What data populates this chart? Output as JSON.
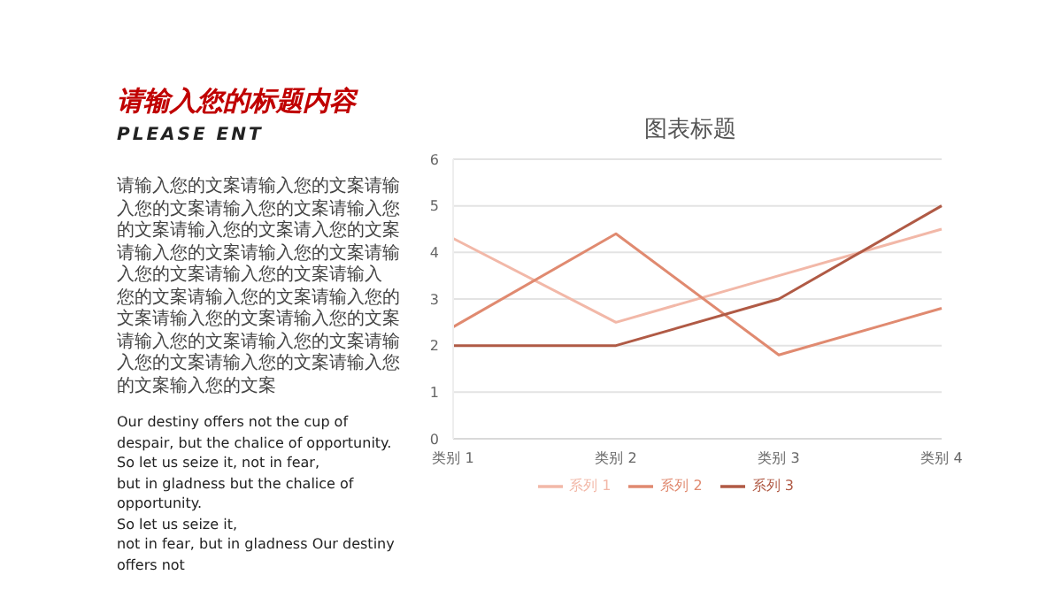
{
  "chart_data": {
    "type": "line",
    "title": "图表标题",
    "categories": [
      "类别 1",
      "类别 2",
      "类别 3",
      "类别 4"
    ],
    "series": [
      {
        "name": "系列 1",
        "color": "#f2b8a8",
        "values": [
          4.3,
          2.5,
          3.5,
          4.5
        ]
      },
      {
        "name": "系列 2",
        "color": "#e08a70",
        "values": [
          2.4,
          4.4,
          1.8,
          2.8
        ]
      },
      {
        "name": "系列 3",
        "color": "#b05a45",
        "values": [
          2,
          2,
          3,
          5
        ]
      }
    ],
    "ylim": [
      0,
      6
    ],
    "yticks": [
      0,
      1,
      2,
      3,
      4,
      5,
      6
    ],
    "grid": "y",
    "legend": "bottom",
    "marker": "none",
    "line_style": "solid",
    "annotations": [
      "请输入您的标题内容",
      "PLEASE ENT",
      "请输入您的文案请输入您的文案请输入您的文案请输入您的文案请输入您的文案请输入您的文案请入您的文案请输入您的文案请输入您的文案请输入您的文案请输入您的文案请输入",
      "您的文案请输入您的文案请输入您的文案请输入您的文案请输入您的文案请输入您的文案请输入您的文案请输入您的文案请输入您的文案请输入您的文案输入您的文案",
      "Our destiny offers not the cup of despair, but the chalice of opportunity.",
      "So let us seize it, not in fear,",
      "but in gladness but the chalice of opportunity.",
      "So let us seize it,",
      "not in fear, but in gladness Our destiny offers not"
    ]
  }
}
